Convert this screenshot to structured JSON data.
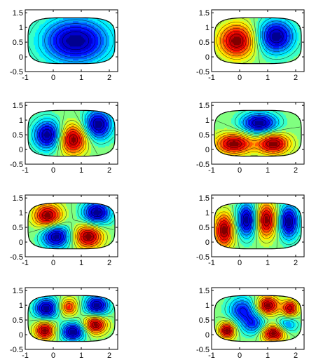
{
  "chart_data": {
    "type": "heatmap",
    "layout": {
      "rows": 4,
      "cols": 2
    },
    "colormap": [
      "#00008f",
      "#0000ff",
      "#0080ff",
      "#00ffff",
      "#80ff80",
      "#ffff00",
      "#ff8000",
      "#ff0000",
      "#800000"
    ],
    "xlim": [
      -1,
      2.3
    ],
    "ylim": [
      -0.5,
      1.6
    ],
    "xticks": [
      -1,
      0,
      1,
      2
    ],
    "yticks": [
      1.5,
      1,
      0.5,
      0,
      -0.5
    ],
    "xtick_labels": [
      "-1",
      "0",
      "1",
      "2"
    ],
    "ytick_labels": [
      "1.5",
      "1",
      "0.5",
      "0",
      "-0.5"
    ],
    "panels": [
      {
        "mode": 1,
        "bumps": [
          {
            "x": 0.8,
            "y": 0.55,
            "amp": -1.4,
            "sx": 0.85,
            "sy": 0.55
          }
        ]
      },
      {
        "mode": 2,
        "bumps": [
          {
            "x": -0.1,
            "y": 0.55,
            "amp": 1,
            "sx": 0.45,
            "sy": 0.4
          },
          {
            "x": 1.3,
            "y": 0.7,
            "amp": -1,
            "sx": 0.45,
            "sy": 0.4
          }
        ]
      },
      {
        "mode": 3,
        "bumps": [
          {
            "x": -0.2,
            "y": 0.5,
            "amp": -1,
            "sx": 0.35,
            "sy": 0.35
          },
          {
            "x": 0.7,
            "y": 0.35,
            "amp": 1,
            "sx": 0.35,
            "sy": 0.35
          },
          {
            "x": 1.6,
            "y": 0.85,
            "amp": -1,
            "sx": 0.35,
            "sy": 0.35
          }
        ]
      },
      {
        "mode": 4,
        "bumps": [
          {
            "x": 0.7,
            "y": 0.9,
            "amp": -1,
            "sx": 0.45,
            "sy": 0.25
          },
          {
            "x": -0.2,
            "y": 0.2,
            "amp": 1,
            "sx": 0.45,
            "sy": 0.25
          },
          {
            "x": 1.2,
            "y": 0.2,
            "amp": 1,
            "sx": 0.4,
            "sy": 0.25
          }
        ]
      },
      {
        "mode": 5,
        "bumps": [
          {
            "x": -0.2,
            "y": 0.9,
            "amp": 1,
            "sx": 0.35,
            "sy": 0.28
          },
          {
            "x": 0.1,
            "y": 0.2,
            "amp": -1,
            "sx": 0.35,
            "sy": 0.28
          },
          {
            "x": 1.55,
            "y": 1,
            "amp": -1,
            "sx": 0.35,
            "sy": 0.28
          },
          {
            "x": 1.25,
            "y": 0.2,
            "amp": 1,
            "sx": 0.35,
            "sy": 0.28
          }
        ]
      },
      {
        "mode": 6,
        "bumps": [
          {
            "x": -0.55,
            "y": 0.4,
            "amp": 1,
            "sx": 0.25,
            "sy": 0.4
          },
          {
            "x": 0.25,
            "y": 0.75,
            "amp": -1,
            "sx": 0.25,
            "sy": 0.4
          },
          {
            "x": 0.95,
            "y": 0.75,
            "amp": 1,
            "sx": 0.25,
            "sy": 0.4
          },
          {
            "x": 1.75,
            "y": 0.7,
            "amp": -1,
            "sx": 0.25,
            "sy": 0.4
          }
        ]
      },
      {
        "mode": 7,
        "bumps": [
          {
            "x": -0.25,
            "y": 0.9,
            "amp": -1,
            "sx": 0.3,
            "sy": 0.25
          },
          {
            "x": 0.55,
            "y": 0.95,
            "amp": 0.7,
            "sx": 0.22,
            "sy": 0.2
          },
          {
            "x": 1.55,
            "y": 1,
            "amp": -1,
            "sx": 0.3,
            "sy": 0.25
          },
          {
            "x": -0.3,
            "y": 0.15,
            "amp": 1,
            "sx": 0.25,
            "sy": 0.22
          },
          {
            "x": 0.7,
            "y": 0.1,
            "amp": -1,
            "sx": 0.3,
            "sy": 0.22
          },
          {
            "x": 1.5,
            "y": 0.35,
            "amp": 1,
            "sx": 0.28,
            "sy": 0.22
          }
        ]
      },
      {
        "mode": 8,
        "bumps": [
          {
            "x": 1,
            "y": 1,
            "amp": 1,
            "sx": 0.28,
            "sy": 0.22
          },
          {
            "x": 1.2,
            "y": 0.05,
            "amp": 1,
            "sx": 0.3,
            "sy": 0.2
          },
          {
            "x": -0.45,
            "y": 0.15,
            "amp": 1,
            "sx": 0.2,
            "sy": 0.2
          },
          {
            "x": 1.8,
            "y": 0.9,
            "amp": 0.9,
            "sx": 0.2,
            "sy": 0.2
          },
          {
            "x": 0.1,
            "y": 0.85,
            "amp": -0.7,
            "sx": 0.35,
            "sy": 0.3
          },
          {
            "x": 0.5,
            "y": 0.35,
            "amp": -0.6,
            "sx": 0.3,
            "sy": 0.25
          },
          {
            "x": 1.7,
            "y": 0.35,
            "amp": -0.5,
            "sx": 0.25,
            "sy": 0.2
          }
        ]
      }
    ]
  }
}
